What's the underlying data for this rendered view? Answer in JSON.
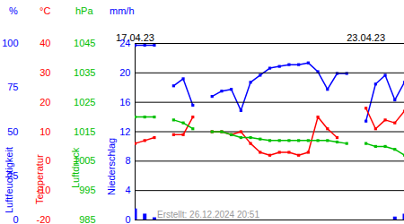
{
  "chart_data": [
    {
      "type": "line",
      "ylabel": "Luftfeuchtigkeit",
      "unit": "%",
      "caption": "Erstellt: 26.12.2024 20:51",
      "x": [
        0,
        6,
        12,
        18,
        24,
        30,
        36,
        42,
        48,
        54,
        60,
        66,
        72,
        78,
        84,
        90,
        96,
        102,
        108,
        114,
        120,
        126,
        132,
        138,
        144,
        150,
        156,
        162,
        168
      ],
      "xlim": [
        0,
        168
      ],
      "xticks": [
        {
          "value": 0,
          "label": "17.04.23"
        },
        {
          "value": 144,
          "label": "23.04.23"
        }
      ],
      "ylim": [
        0,
        100
      ],
      "yticks": [
        0,
        25,
        50,
        75,
        100
      ],
      "series": [
        {
          "name": "Luftfeuchtigkeit",
          "color": "#0000ff",
          "marker": "square",
          "values": [
            99,
            99,
            99,
            null,
            76,
            80,
            65,
            null,
            70,
            73,
            74,
            62,
            78,
            82,
            86,
            87,
            88,
            88,
            89,
            84,
            74,
            83,
            83,
            null,
            56,
            77,
            82,
            68,
            78
          ]
        }
      ]
    },
    {
      "type": "line",
      "ylabel": "Temperatur",
      "unit": "°C",
      "grid": true,
      "x": [
        0,
        6,
        12,
        18,
        24,
        30,
        36,
        42,
        48,
        54,
        60,
        66,
        72,
        78,
        84,
        90,
        96,
        102,
        108,
        114,
        120,
        126,
        132,
        138,
        144,
        150,
        156,
        162,
        168
      ],
      "xlim": [
        0,
        168
      ],
      "ylim": [
        -20,
        40
      ],
      "yticks": [
        -20,
        -10,
        0,
        10,
        20,
        30,
        40
      ],
      "series": [
        {
          "name": "Temperatur",
          "color": "#ff0000",
          "marker": "square",
          "values": [
            6,
            7,
            8,
            null,
            9,
            9,
            15,
            null,
            10,
            10,
            9,
            10,
            6,
            3,
            2,
            3,
            3,
            2,
            3,
            15,
            11,
            8,
            null,
            null,
            18,
            11,
            14,
            13,
            17
          ]
        }
      ]
    },
    {
      "type": "line",
      "ylabel": "Luftdruck",
      "unit": "hPa",
      "x": [
        0,
        6,
        12,
        18,
        24,
        30,
        36,
        42,
        48,
        54,
        60,
        66,
        72,
        78,
        84,
        90,
        96,
        102,
        108,
        114,
        120,
        126,
        132,
        138,
        144,
        150,
        156,
        162,
        168
      ],
      "xlim": [
        0,
        168
      ],
      "ylim": [
        985,
        1045
      ],
      "yticks": [
        985,
        995,
        1005,
        1015,
        1025,
        1035,
        1045
      ],
      "series": [
        {
          "name": "Luftdruck",
          "color": "#00c000",
          "marker": "square",
          "values": [
            1020,
            1020,
            1020,
            null,
            1019,
            1018,
            1016,
            null,
            1015,
            1015,
            1014,
            1013,
            1013,
            1012.5,
            1012,
            1012,
            1012,
            1012,
            1012,
            1012,
            1012,
            1011.5,
            1011,
            null,
            1011,
            1010,
            1010,
            1009,
            1007
          ]
        }
      ]
    },
    {
      "type": "bar",
      "ylabel": "Niederschlag",
      "unit": "mm/h",
      "x": [
        0,
        6,
        12,
        18,
        24,
        30,
        36,
        42,
        48,
        54,
        60,
        66,
        72,
        78,
        84,
        90,
        96,
        102,
        108,
        114,
        120,
        126,
        132,
        138,
        144,
        150,
        156,
        162,
        168
      ],
      "xlim": [
        0,
        168
      ],
      "ylim": [
        0,
        24
      ],
      "yticks": [
        0,
        4,
        8,
        12,
        16,
        20,
        24
      ],
      "series": [
        {
          "name": "Niederschlag",
          "color": "#0000ff",
          "values": [
            1.5,
            0.8,
            0.3,
            0,
            0,
            0,
            0,
            0,
            0,
            0,
            0,
            0,
            0,
            0,
            0,
            0,
            0,
            0,
            0,
            0,
            0,
            0,
            0,
            0,
            0,
            0,
            0,
            0.4,
            0.8
          ]
        }
      ]
    }
  ]
}
